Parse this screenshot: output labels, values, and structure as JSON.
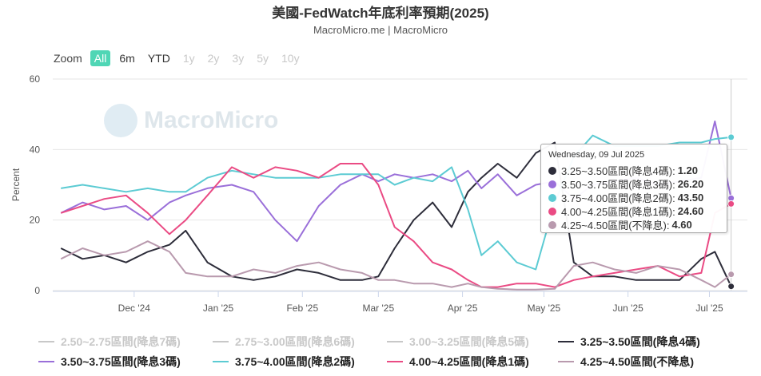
{
  "header": {
    "title": "美國-FedWatch年底利率預期(2025)",
    "subtitle": "MacroMicro.me | MacroMicro"
  },
  "watermark": "MacroMicro",
  "zoom": {
    "label": "Zoom",
    "buttons": [
      {
        "label": "All",
        "state": "active"
      },
      {
        "label": "6m",
        "state": "normal"
      },
      {
        "label": "YTD",
        "state": "normal"
      },
      {
        "label": "1y",
        "state": "disabled"
      },
      {
        "label": "2y",
        "state": "disabled"
      },
      {
        "label": "3y",
        "state": "disabled"
      },
      {
        "label": "5y",
        "state": "disabled"
      },
      {
        "label": "10y",
        "state": "disabled"
      }
    ]
  },
  "tooltip": {
    "header": "Wednesday, 09 Jul 2025",
    "rows": [
      {
        "label": "3.25~3.50區間(降息4碼):",
        "value": "1.20",
        "color": "#2d2d3a"
      },
      {
        "label": "3.50~3.75區間(降息3碼):",
        "value": "26.20",
        "color": "#9a6fd9"
      },
      {
        "label": "3.75~4.00區間(降息2碼):",
        "value": "43.50",
        "color": "#5ccbd3"
      },
      {
        "label": "4.00~4.25區間(降息1碼):",
        "value": "24.60",
        "color": "#ea4b84"
      },
      {
        "label": "4.25~4.50區間(不降息):",
        "value": "4.60",
        "color": "#b99aae"
      }
    ]
  },
  "chart_data": {
    "type": "line",
    "xlabel": "",
    "ylabel": "Percent",
    "ylim": [
      0,
      60
    ],
    "yticks": [
      0,
      20,
      40,
      60
    ],
    "xlim": [
      "2024-11-01",
      "2025-07-15"
    ],
    "xticks": [
      {
        "date": "2024-12-01",
        "label": "Dec '24"
      },
      {
        "date": "2025-01-01",
        "label": "Jan '25"
      },
      {
        "date": "2025-02-01",
        "label": "Feb '25"
      },
      {
        "date": "2025-03-01",
        "label": "Mar '25"
      },
      {
        "date": "2025-04-01",
        "label": "Apr '25"
      },
      {
        "date": "2025-05-01",
        "label": "May '25"
      },
      {
        "date": "2025-06-01",
        "label": "Jun '25"
      },
      {
        "date": "2025-07-01",
        "label": "Jul '25"
      }
    ],
    "grid": "horizontal",
    "legend_position": "bottom",
    "hover_date": "2025-07-09",
    "series": [
      {
        "name": "2.50~2.75區間(降息7碼)",
        "color": "#c8c8c8",
        "visible": false,
        "x": [],
        "y": []
      },
      {
        "name": "2.75~3.00區間(降息6碼)",
        "color": "#c8c8c8",
        "visible": false,
        "x": [],
        "y": []
      },
      {
        "name": "3.00~3.25區間(降息5碼)",
        "color": "#c8c8c8",
        "visible": false,
        "x": [],
        "y": []
      },
      {
        "name": "3.25~3.50區間(降息4碼)",
        "color": "#2d2d3a",
        "visible": true,
        "x": [
          "2024-11-04",
          "2024-11-12",
          "2024-11-20",
          "2024-11-28",
          "2024-12-06",
          "2024-12-14",
          "2024-12-20",
          "2024-12-28",
          "2025-01-06",
          "2025-01-14",
          "2025-01-22",
          "2025-01-30",
          "2025-02-07",
          "2025-02-15",
          "2025-02-23",
          "2025-03-01",
          "2025-03-07",
          "2025-03-14",
          "2025-03-21",
          "2025-03-28",
          "2025-04-03",
          "2025-04-08",
          "2025-04-14",
          "2025-04-21",
          "2025-04-28",
          "2025-05-05",
          "2025-05-12",
          "2025-05-19",
          "2025-05-27",
          "2025-06-04",
          "2025-06-12",
          "2025-06-20",
          "2025-06-28",
          "2025-07-03",
          "2025-07-09"
        ],
        "y": [
          12,
          9,
          10,
          8,
          11,
          13,
          17,
          8,
          4,
          3,
          4,
          6,
          5,
          3,
          3,
          4,
          12,
          20,
          25,
          18,
          28,
          32,
          36,
          32,
          39,
          42,
          8,
          4,
          4,
          3,
          3,
          3,
          9,
          11,
          1.2
        ]
      },
      {
        "name": "3.50~3.75區間(降息3碼)",
        "color": "#9a6fd9",
        "visible": true,
        "x": [
          "2024-11-04",
          "2024-11-12",
          "2024-11-20",
          "2024-11-28",
          "2024-12-06",
          "2024-12-14",
          "2024-12-20",
          "2024-12-28",
          "2025-01-06",
          "2025-01-14",
          "2025-01-22",
          "2025-01-30",
          "2025-02-07",
          "2025-02-15",
          "2025-02-23",
          "2025-03-01",
          "2025-03-07",
          "2025-03-14",
          "2025-03-21",
          "2025-03-28",
          "2025-04-03",
          "2025-04-08",
          "2025-04-14",
          "2025-04-21",
          "2025-04-28",
          "2025-05-05",
          "2025-05-12",
          "2025-05-19",
          "2025-05-27",
          "2025-06-04",
          "2025-06-12",
          "2025-06-20",
          "2025-06-28",
          "2025-07-03",
          "2025-07-09"
        ],
        "y": [
          22,
          25,
          23,
          24,
          20,
          25,
          27,
          29,
          30,
          28,
          20,
          14,
          24,
          30,
          33,
          31,
          33,
          32,
          33,
          31,
          34,
          29,
          33,
          27,
          30,
          31,
          26,
          30,
          31,
          32,
          30,
          31,
          32,
          48,
          26.2
        ]
      },
      {
        "name": "3.75~4.00區間(降息2碼)",
        "color": "#5ccbd3",
        "visible": true,
        "x": [
          "2024-11-04",
          "2024-11-12",
          "2024-11-20",
          "2024-11-28",
          "2024-12-06",
          "2024-12-14",
          "2024-12-20",
          "2024-12-28",
          "2025-01-06",
          "2025-01-14",
          "2025-01-22",
          "2025-01-30",
          "2025-02-07",
          "2025-02-15",
          "2025-02-23",
          "2025-03-01",
          "2025-03-07",
          "2025-03-14",
          "2025-03-21",
          "2025-03-28",
          "2025-04-03",
          "2025-04-08",
          "2025-04-14",
          "2025-04-21",
          "2025-04-28",
          "2025-05-05",
          "2025-05-12",
          "2025-05-19",
          "2025-05-27",
          "2025-06-04",
          "2025-06-12",
          "2025-06-20",
          "2025-06-28",
          "2025-07-03",
          "2025-07-09"
        ],
        "y": [
          29,
          30,
          29,
          28,
          29,
          28,
          28,
          32,
          34,
          33,
          32,
          32,
          32,
          33,
          33,
          33,
          30,
          32,
          31,
          35,
          23,
          10,
          14,
          8,
          6,
          25,
          38,
          44,
          41,
          41,
          41,
          42,
          42,
          43,
          43.5
        ]
      },
      {
        "name": "4.00~4.25區間(降息1碼)",
        "color": "#ea4b84",
        "visible": true,
        "x": [
          "2024-11-04",
          "2024-11-12",
          "2024-11-20",
          "2024-11-28",
          "2024-12-06",
          "2024-12-14",
          "2024-12-20",
          "2024-12-28",
          "2025-01-06",
          "2025-01-14",
          "2025-01-22",
          "2025-01-30",
          "2025-02-07",
          "2025-02-15",
          "2025-02-23",
          "2025-03-01",
          "2025-03-07",
          "2025-03-14",
          "2025-03-21",
          "2025-03-28",
          "2025-04-03",
          "2025-04-08",
          "2025-04-14",
          "2025-04-21",
          "2025-04-28",
          "2025-05-05",
          "2025-05-12",
          "2025-05-19",
          "2025-05-27",
          "2025-06-04",
          "2025-06-12",
          "2025-06-20",
          "2025-06-28",
          "2025-07-03",
          "2025-07-09"
        ],
        "y": [
          22,
          24,
          26,
          27,
          22,
          16,
          20,
          27,
          35,
          32,
          35,
          34,
          32,
          36,
          36,
          30,
          18,
          14,
          8,
          6,
          3,
          1,
          1,
          2,
          2,
          1,
          3,
          4,
          5,
          6,
          7,
          4,
          5,
          22,
          24.6
        ]
      },
      {
        "name": "4.25~4.50區間(不降息)",
        "color": "#b99aae",
        "visible": true,
        "x": [
          "2024-11-04",
          "2024-11-12",
          "2024-11-20",
          "2024-11-28",
          "2024-12-06",
          "2024-12-14",
          "2024-12-20",
          "2024-12-28",
          "2025-01-06",
          "2025-01-14",
          "2025-01-22",
          "2025-01-30",
          "2025-02-07",
          "2025-02-15",
          "2025-02-23",
          "2025-03-01",
          "2025-03-07",
          "2025-03-14",
          "2025-03-21",
          "2025-03-28",
          "2025-04-03",
          "2025-04-08",
          "2025-04-14",
          "2025-04-21",
          "2025-04-28",
          "2025-05-05",
          "2025-05-12",
          "2025-05-19",
          "2025-05-27",
          "2025-06-04",
          "2025-06-12",
          "2025-06-20",
          "2025-06-28",
          "2025-07-03",
          "2025-07-09"
        ],
        "y": [
          9,
          12,
          10,
          11,
          14,
          11,
          5,
          4,
          4,
          6,
          5,
          7,
          8,
          6,
          5,
          3,
          3,
          2,
          2,
          1,
          2,
          1,
          0.5,
          0.3,
          0.3,
          0.5,
          7,
          8,
          6,
          5,
          7,
          6,
          3,
          1,
          4.6
        ]
      }
    ]
  }
}
